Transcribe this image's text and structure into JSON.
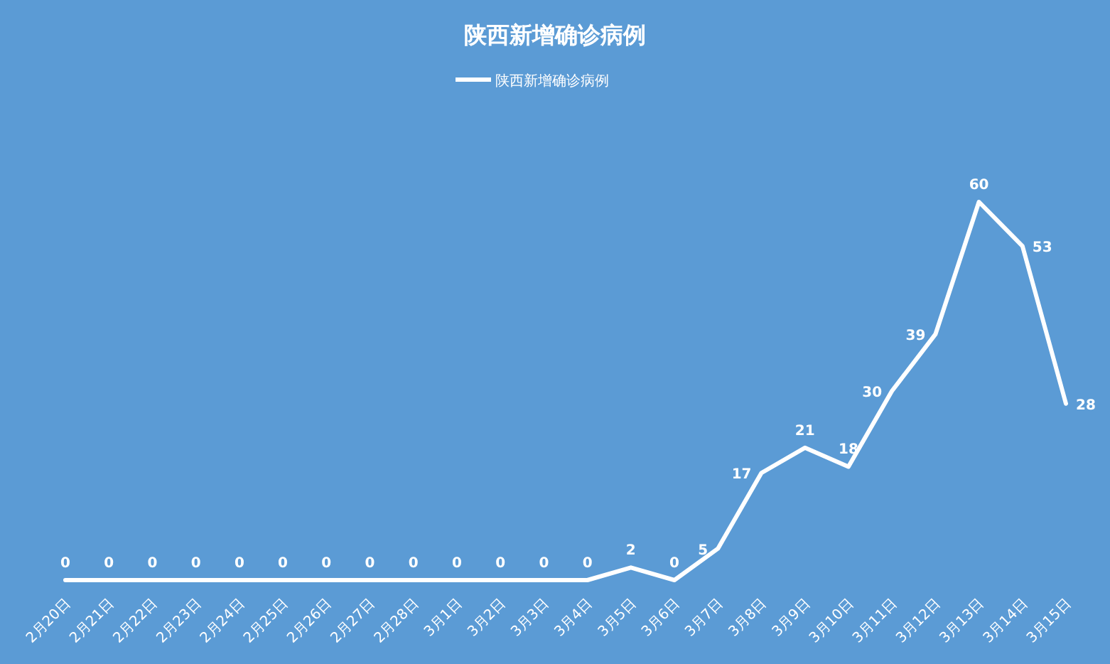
{
  "chart_data": {
    "type": "line",
    "title": "陕西新增确诊病例",
    "categories": [
      "2月20日",
      "2月21日",
      "2月22日",
      "2月23日",
      "2月24日",
      "2月25日",
      "2月26日",
      "2月27日",
      "2月28日",
      "3月1日",
      "3月2日",
      "3月3日",
      "3月4日",
      "3月5日",
      "3月6日",
      "3月7日",
      "3月8日",
      "3月9日",
      "3月10日",
      "3月11日",
      "3月12日",
      "3月13日",
      "3月14日",
      "3月15日"
    ],
    "series": [
      {
        "name": "陕西新增确诊病例",
        "color": "#ffffff",
        "values": [
          0,
          0,
          0,
          0,
          0,
          0,
          0,
          0,
          0,
          0,
          0,
          0,
          0,
          2,
          0,
          5,
          17,
          21,
          18,
          30,
          39,
          60,
          53,
          28
        ]
      }
    ],
    "data_labels": true,
    "legend": "top",
    "grid": false,
    "marker": "none",
    "line_style": "solid"
  }
}
